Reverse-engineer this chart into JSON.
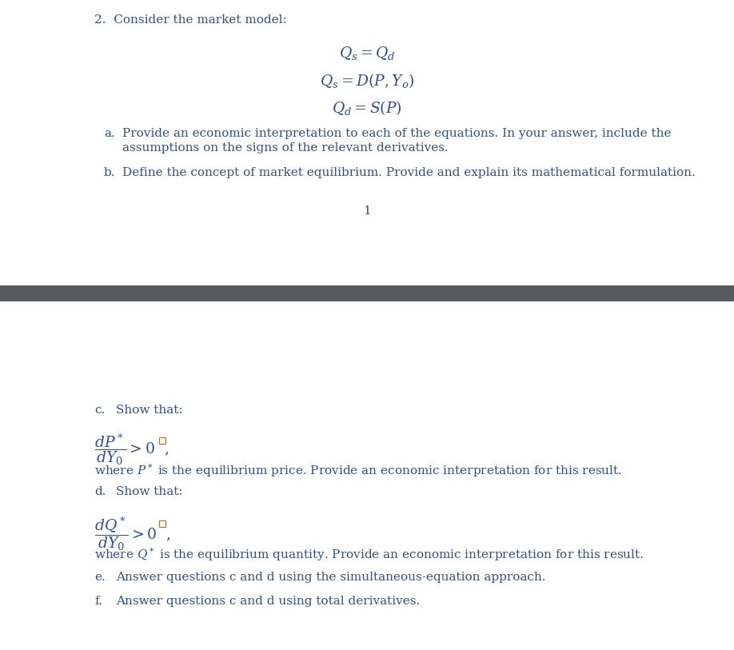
{
  "bg_color": "#ffffff",
  "divider_color": "#555a5e",
  "text_color": "#2e5090",
  "page_number": "1",
  "top_section": {
    "question_num": "2.  Consider the market model:",
    "eq1": "$Q_s = Q_d$",
    "eq2": "$Q_s = D(P, Y_o)$",
    "eq3": "$Q_d = S(P)$",
    "part_a_label": "a.",
    "part_a_text1": "Provide an economic interpretation to each of the equations. In your answer, include the",
    "part_a_text2": "assumptions on the signs of the relevant derivatives.",
    "part_b_label": "b.",
    "part_b_text": "Define the concept of market equilibrium. Provide and explain its mathematical formulation."
  },
  "bottom_section": {
    "part_c_label": "c.",
    "part_c_text": "Show that:",
    "part_c_formula": "$\\dfrac{dP^*}{dY_0} > 0$  ,",
    "part_c_where": "where $\\boldsymbol{P^*}$ is the equilibrium price. Provide an economic interpretation for this result.",
    "part_d_label": "d.",
    "part_d_text": "Show that:",
    "part_d_formula": "$\\dfrac{dQ^*}{dY_0} > 0$  ,",
    "part_d_where": "where $\\boldsymbol{Q^*}$ is the equilibrium quantity. Provide an economic interpretation for this result.",
    "part_e_label": "e.",
    "part_e_text": "Answer questions c and d using the simultaneous-equation approach.",
    "part_f_label": "f.",
    "part_f_text": "Answer questions c and d using total derivatives."
  }
}
